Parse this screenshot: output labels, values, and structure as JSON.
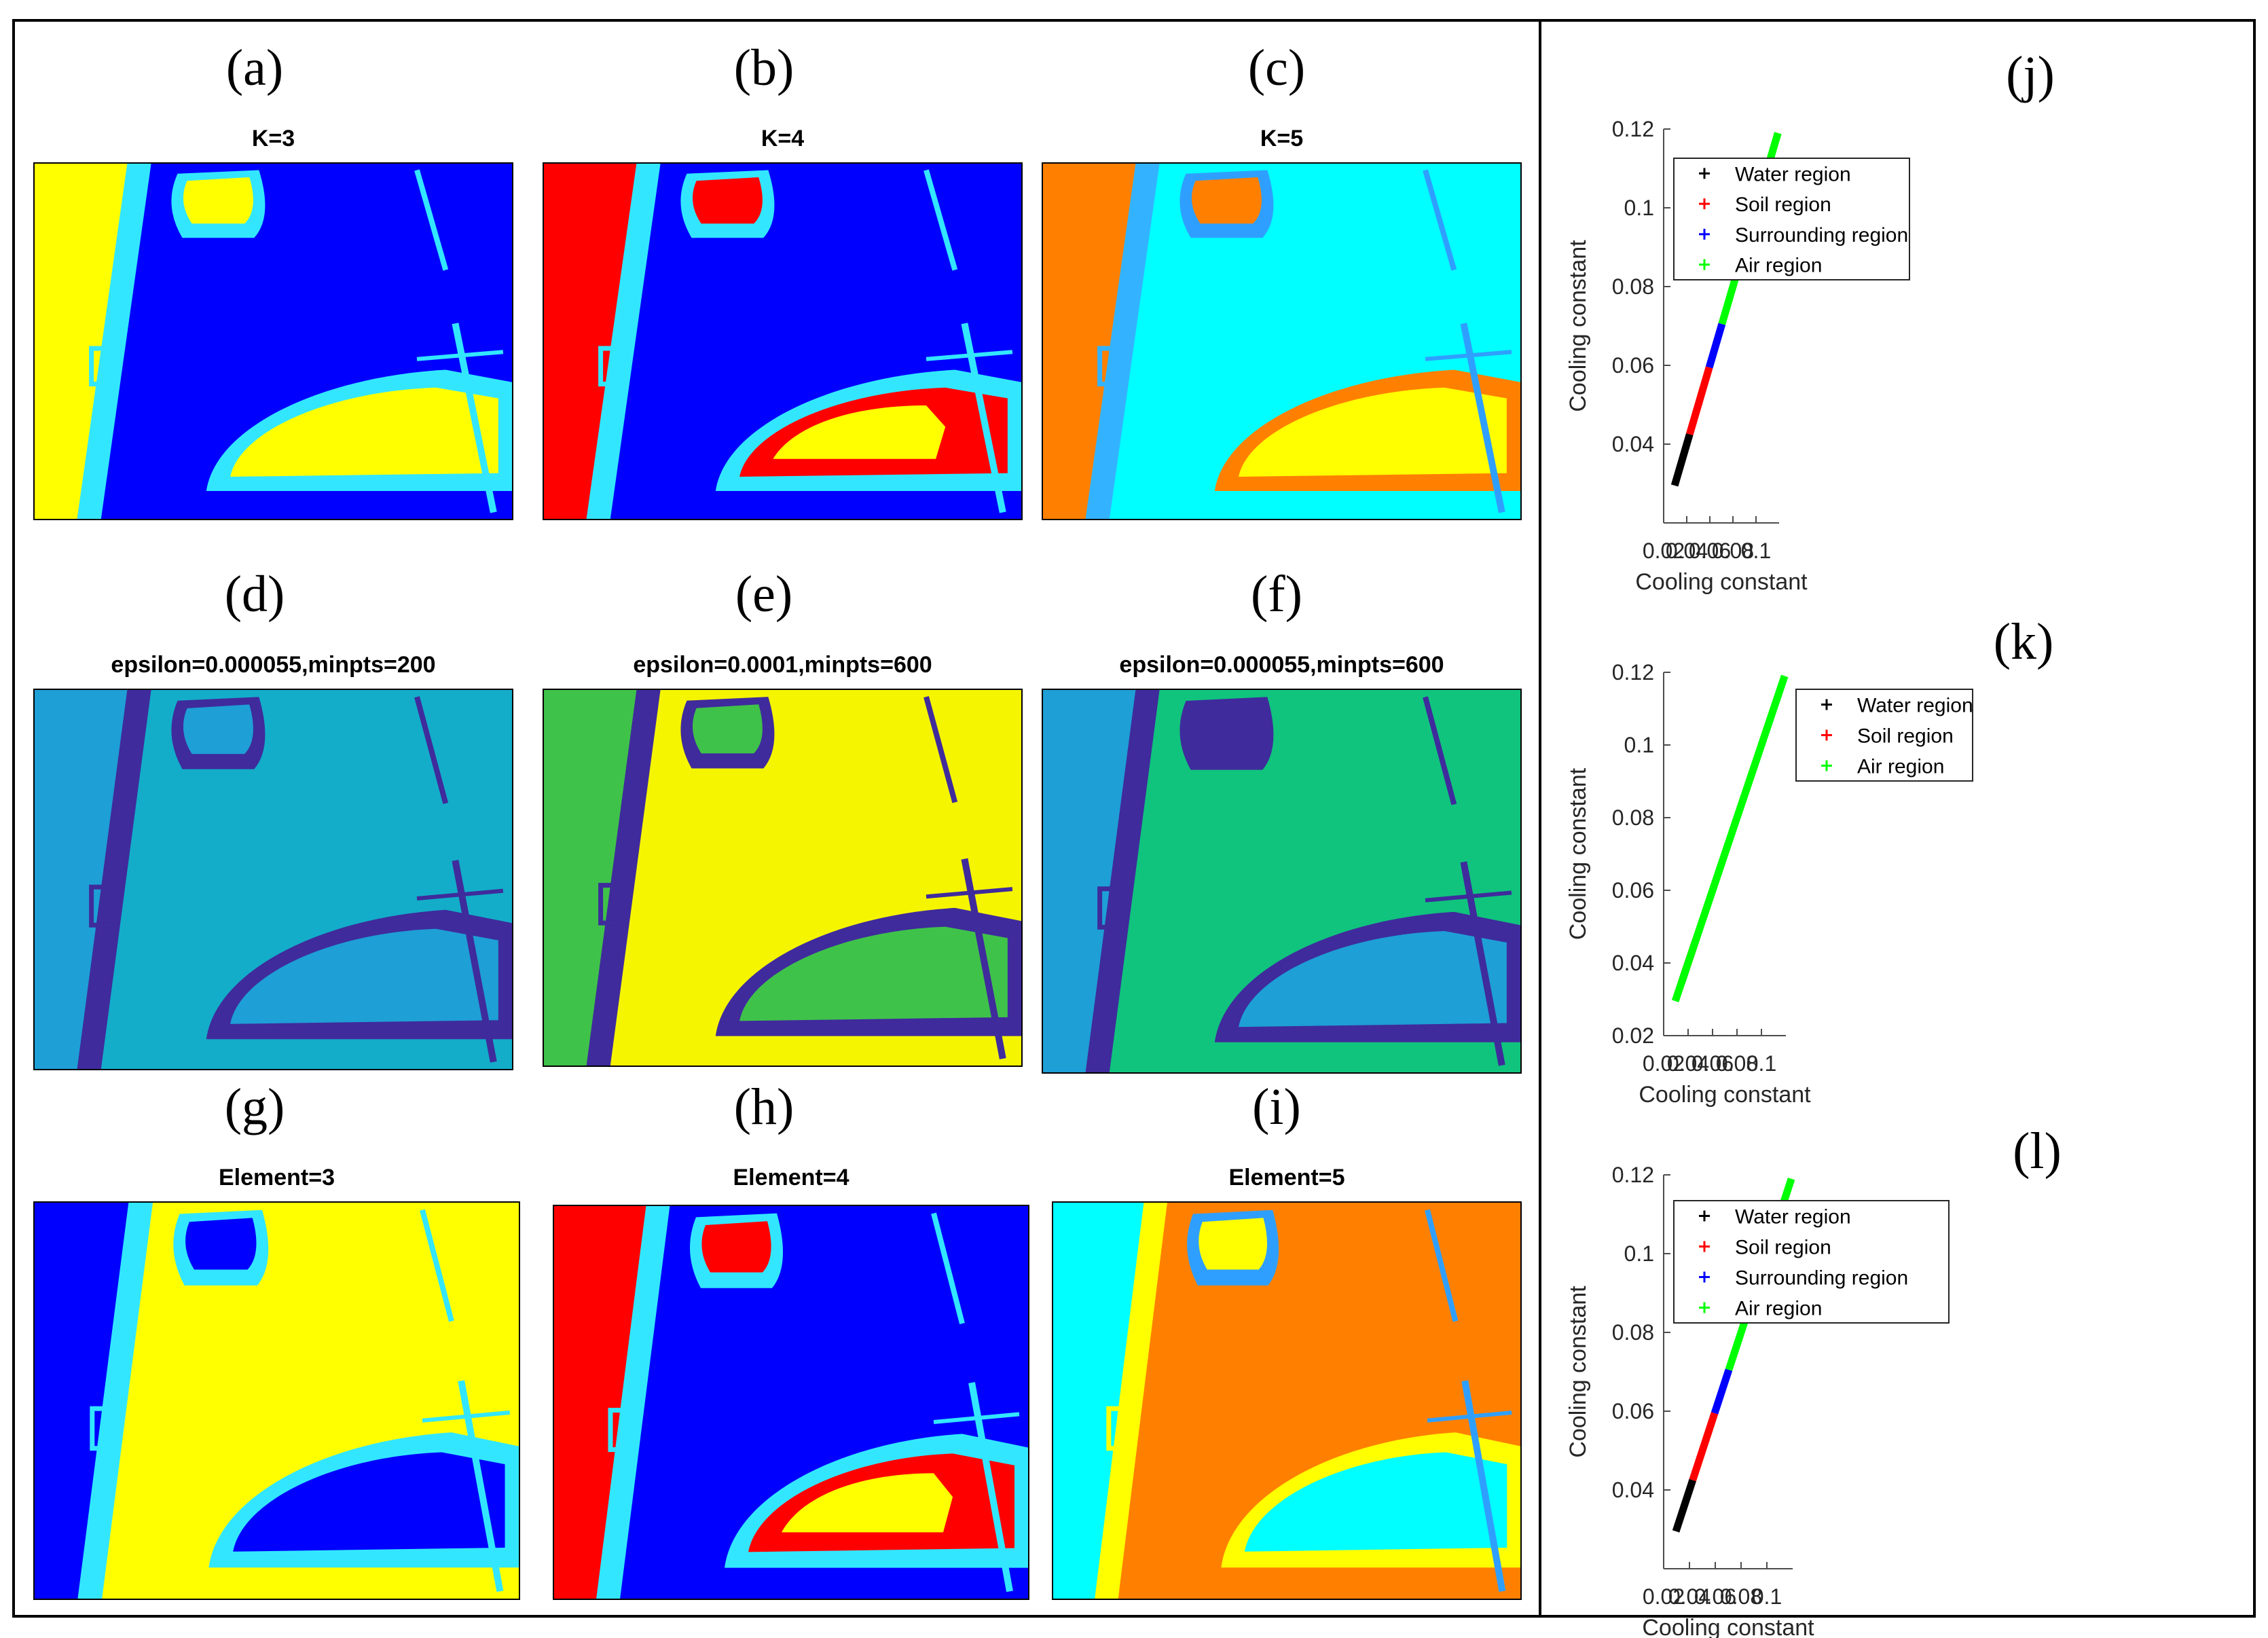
{
  "panels": [
    {
      "id": "a",
      "letter": "(a)",
      "title": "K=3",
      "palette": {
        "bg": "#0000ff",
        "lake_ring": "#33e6ff",
        "lake": "#ffff00",
        "left": "#ffff00",
        "strip": "#33e6ff",
        "shore": "#33e6ff",
        "topblob": "#ffff00"
      }
    },
    {
      "id": "b",
      "letter": "(b)",
      "title": "K=4",
      "palette": {
        "bg": "#0000ff",
        "lake_ring": "#33e6ff",
        "lake": "#ff0000",
        "lake_core": "#ffff00",
        "left": "#ff0000",
        "strip": "#33e6ff",
        "shore": "#33e6ff",
        "topblob": "#ff0000"
      }
    },
    {
      "id": "c",
      "letter": "(c)",
      "title": "K=5",
      "palette": {
        "bg": "#00ffff",
        "lake_ring": "#ff8000",
        "lake": "#ffff00",
        "left": "#ff8000",
        "strip": "#33b3ff",
        "shore": "#2f9fff",
        "topblob": "#ff8000"
      }
    },
    {
      "id": "d",
      "letter": "(d)",
      "title": "epsilon=0.000055,minpts=200",
      "palette": {
        "bg": "#13adc9",
        "lake_ring": "#3f2b9c",
        "lake": "#1e9fd6",
        "left": "#1e9fd6",
        "strip": "#3f2b9c",
        "shore": "#3f2b9c",
        "topblob": "#1e9fd6"
      }
    },
    {
      "id": "e",
      "letter": "(e)",
      "title": "epsilon=0.0001,minpts=600",
      "palette": {
        "bg": "#f5f500",
        "lake_ring": "#3f2b9c",
        "lake": "#3fc24a",
        "left": "#3fc24a",
        "strip": "#3f2b9c",
        "shore": "#3f2b9c",
        "topblob": "#3fc24a"
      }
    },
    {
      "id": "f",
      "letter": "(f)",
      "title": "epsilon=0.000055,minpts=600",
      "palette": {
        "bg": "#10c47d",
        "lake_ring": "#3f2b9c",
        "lake": "#1e9fd6",
        "left": "#1e9fd6",
        "strip": "#3f2b9c",
        "shore": "#3f2b9c",
        "topblob": "#3f2b9c"
      }
    },
    {
      "id": "g",
      "letter": "(g)",
      "title": "Element=3",
      "palette": {
        "bg": "#ffff00",
        "lake_ring": "#33e6ff",
        "lake": "#0000ff",
        "left": "#0000ff",
        "strip": "#33e6ff",
        "shore": "#33e6ff",
        "topblob": "#0000ff"
      }
    },
    {
      "id": "h",
      "letter": "(h)",
      "title": "Element=4",
      "palette": {
        "bg": "#0000ff",
        "lake_ring": "#33e6ff",
        "lake": "#ff0000",
        "lake_core": "#ffff00",
        "left": "#ff0000",
        "strip": "#33e6ff",
        "shore": "#33e6ff",
        "topblob": "#ff0000"
      }
    },
    {
      "id": "i",
      "letter": "(i)",
      "title": "Element=5",
      "palette": {
        "bg": "#ff8000",
        "lake_ring": "#ffff00",
        "lake": "#00ffff",
        "left": "#00ffff",
        "strip": "#ffff00",
        "shore": "#2f9fff",
        "topblob": "#ffff00"
      }
    }
  ],
  "chart_data": [
    {
      "id": "j",
      "letter": "(j)",
      "type": "line",
      "xlabel": "Cooling constant",
      "ylabel": "Cooling constant",
      "xlim": [
        0.02,
        0.12
      ],
      "ylim": [
        0.02,
        0.12
      ],
      "xticks": [
        0.02,
        0.04,
        0.06,
        0.08,
        0.1
      ],
      "xtick_labels": [
        "0.02",
        "0.04",
        "0.06",
        "0.08",
        "0.1"
      ],
      "yticks": [
        0.04,
        0.06,
        0.08,
        0.1,
        0.12
      ],
      "ytick_labels": [
        "0.04",
        "0.06",
        "0.08",
        "0.1",
        "0.12"
      ],
      "legend_position": "top-left",
      "series": [
        {
          "name": "Water region",
          "color": "#000000",
          "x": [
            0.0295,
            0.0425
          ],
          "y": [
            0.0295,
            0.0425
          ]
        },
        {
          "name": "Soil region",
          "color": "#ff0000",
          "x": [
            0.0425,
            0.0595
          ],
          "y": [
            0.0425,
            0.0595
          ]
        },
        {
          "name": "Surrounding region",
          "color": "#0000ff",
          "x": [
            0.0595,
            0.0705
          ],
          "y": [
            0.0595,
            0.0705
          ]
        },
        {
          "name": "Air region",
          "color": "#00ff00",
          "x": [
            0.0705,
            0.119
          ],
          "y": [
            0.0705,
            0.119
          ]
        }
      ]
    },
    {
      "id": "k",
      "letter": "(k)",
      "type": "line",
      "xlabel": "Cooling constant",
      "ylabel": "Cooling constant",
      "xlim": [
        0.02,
        0.12
      ],
      "ylim": [
        0.02,
        0.12
      ],
      "xticks": [
        0.02,
        0.04,
        0.06,
        0.08,
        0.1
      ],
      "xtick_labels": [
        "0.02",
        "0.04",
        "0.06",
        "0.08",
        "0.1"
      ],
      "yticks": [
        0.02,
        0.04,
        0.06,
        0.08,
        0.1,
        0.12
      ],
      "ytick_labels": [
        "0.02",
        "0.04",
        "0.06",
        "0.08",
        "0.1",
        "0.12"
      ],
      "legend_position": "top-center",
      "series": [
        {
          "name": "Water region",
          "color": "#000000",
          "x": [
            0.0345,
            0.039
          ],
          "y": [
            0.0345,
            0.039
          ]
        },
        {
          "name": "Soil region",
          "color": "#ff0000",
          "x": [
            0.039,
            0.0465
          ],
          "y": [
            0.039,
            0.0465
          ]
        },
        {
          "name": "Air region",
          "color": "#00ff00",
          "x": [
            0.0295,
            0.0345,
            0.0465,
            0.119
          ],
          "y": [
            0.0295,
            0.0345,
            0.0465,
            0.119
          ]
        }
      ]
    },
    {
      "id": "l",
      "letter": "(l)",
      "type": "line",
      "xlabel": "Cooling constant",
      "ylabel": "Cooling constant",
      "xlim": [
        0.02,
        0.12
      ],
      "ylim": [
        0.02,
        0.12
      ],
      "xticks": [
        0.02,
        0.04,
        0.06,
        0.08,
        0.1
      ],
      "xtick_labels": [
        "0.02",
        "0.04",
        "0.06",
        "0.08",
        "0.1"
      ],
      "yticks": [
        0.04,
        0.06,
        0.08,
        0.1,
        0.12
      ],
      "ytick_labels": [
        "0.04",
        "0.06",
        "0.08",
        "0.1",
        "0.12"
      ],
      "legend_position": "top-left",
      "series": [
        {
          "name": "Water region",
          "color": "#000000",
          "x": [
            0.0295,
            0.0425
          ],
          "y": [
            0.0295,
            0.0425
          ]
        },
        {
          "name": "Soil region",
          "color": "#ff0000",
          "x": [
            0.0425,
            0.0595
          ],
          "y": [
            0.0425,
            0.0595
          ]
        },
        {
          "name": "Surrounding region",
          "color": "#0000ff",
          "x": [
            0.0595,
            0.0705
          ],
          "y": [
            0.0595,
            0.0705
          ]
        },
        {
          "name": "Air region",
          "color": "#00ff00",
          "x": [
            0.0705,
            0.119
          ],
          "y": [
            0.0705,
            0.119
          ]
        }
      ]
    }
  ]
}
